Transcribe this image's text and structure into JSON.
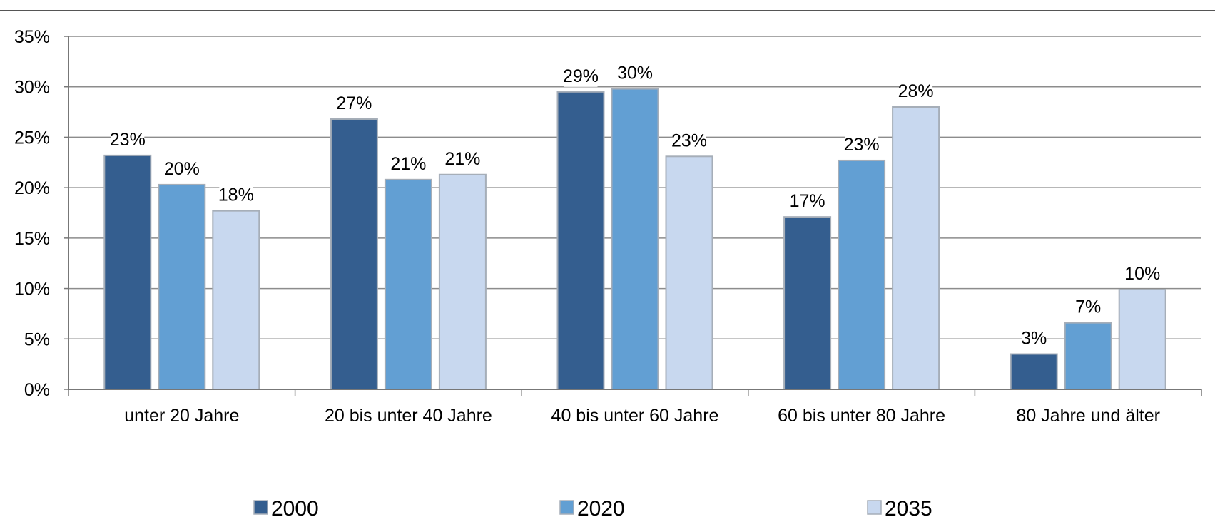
{
  "chart_data": {
    "type": "bar",
    "categories": [
      "unter 20 Jahre",
      "20 bis unter 40 Jahre",
      "40 bis unter 60 Jahre",
      "60 bis unter 80 Jahre",
      "80 Jahre und älter"
    ],
    "series": [
      {
        "name": "2000",
        "color": "#345E8F",
        "values": [
          23.2,
          26.8,
          29.5,
          17.1,
          3.5
        ],
        "labels": [
          "23%",
          "27%",
          "29%",
          "17%",
          "3%"
        ]
      },
      {
        "name": "2020",
        "color": "#629FD3",
        "values": [
          20.3,
          20.8,
          29.8,
          22.7,
          6.6
        ],
        "labels": [
          "20%",
          "21%",
          "30%",
          "23%",
          "7%"
        ]
      },
      {
        "name": "2035",
        "color": "#C8D8EF",
        "values": [
          17.7,
          21.3,
          23.1,
          28.0,
          9.9
        ],
        "labels": [
          "18%",
          "21%",
          "23%",
          "28%",
          "10%"
        ]
      }
    ],
    "y_ticks": [
      "0%",
      "5%",
      "10%",
      "15%",
      "20%",
      "25%",
      "30%",
      "35%"
    ],
    "ylim": [
      0,
      35
    ],
    "grid": true,
    "legend_position": "bottom"
  }
}
